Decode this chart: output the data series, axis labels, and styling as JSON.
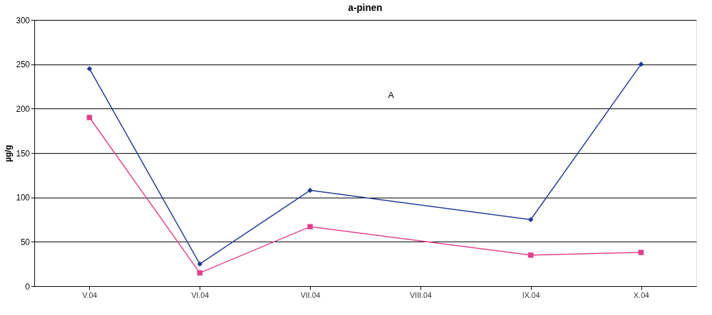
{
  "chart_data": {
    "type": "line",
    "title": "a-pinen",
    "ylabel": "µg/g",
    "categories": [
      "V.04",
      "VI.04",
      "VII.04",
      "VIII.04",
      "IX.04",
      "X.04"
    ],
    "series": [
      {
        "color": "#1f3a93",
        "marker": "diamond",
        "values": [
          245,
          25,
          108,
          null,
          75,
          250
        ]
      },
      {
        "color": "#e0408a",
        "marker": "square",
        "values": [
          190,
          15,
          67,
          null,
          35,
          38
        ]
      }
    ],
    "ylim": [
      0,
      300
    ],
    "yticks": [
      0,
      50,
      100,
      150,
      200,
      250,
      300
    ],
    "grid": "y",
    "annotations": [
      "A"
    ]
  }
}
